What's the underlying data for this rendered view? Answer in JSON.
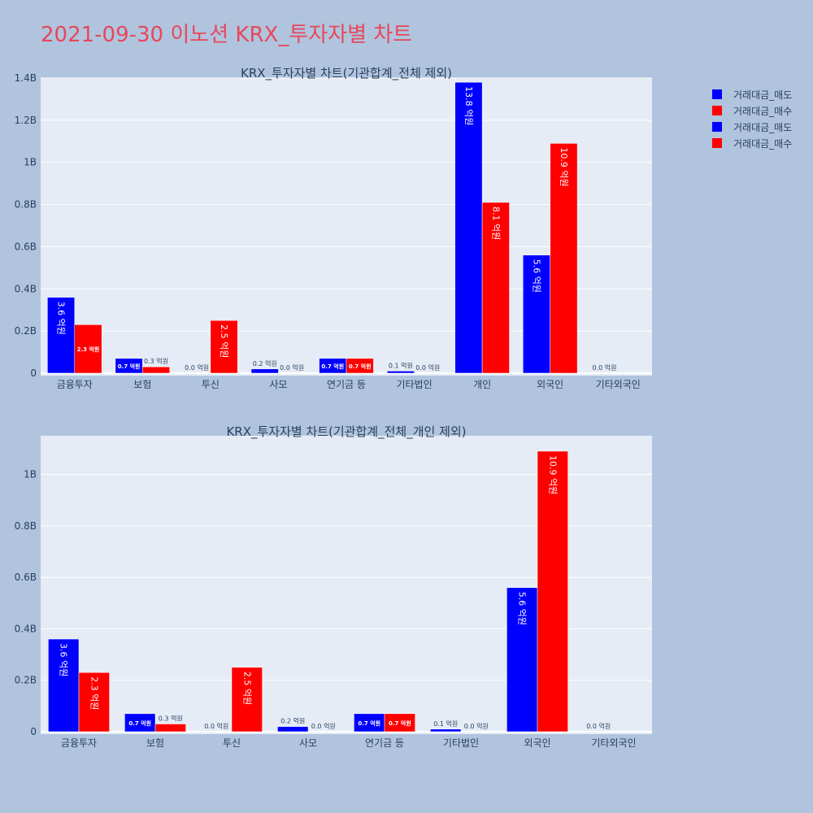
{
  "title": "2021-09-30 이노션 KRX_투자자별 차트",
  "colors": {
    "sell": "#0000ff",
    "buy": "#ff0000",
    "plot_bg": "#e5ecf6",
    "page_bg": "#b0c4de",
    "text": "#2a3f5f"
  },
  "legend": [
    {
      "name": "거래대금_매도",
      "color": "#0000ff"
    },
    {
      "name": "거래대금_매수",
      "color": "#ff0000"
    },
    {
      "name": "거래대금_매도",
      "color": "#0000ff"
    },
    {
      "name": "거래대금_매수",
      "color": "#ff0000"
    }
  ],
  "chart_data": [
    {
      "type": "bar",
      "title": "KRX_투자자별 차트(기관합계_전체 제외)",
      "categories": [
        "금융투자",
        "보험",
        "투신",
        "사모",
        "연기금 등",
        "기타법인",
        "개인",
        "외국인",
        "기타외국인"
      ],
      "ylim": [
        0,
        1400000000
      ],
      "yticks": [
        0,
        200000000,
        400000000,
        600000000,
        800000000,
        1000000000,
        1200000000,
        1400000000
      ],
      "ytick_labels": [
        "0",
        "0.2B",
        "0.4B",
        "0.6B",
        "0.8B",
        "1B",
        "1.2B",
        "1.4B"
      ],
      "grid": true,
      "series": [
        {
          "name": "거래대금_매도",
          "color": "#0000ff",
          "values": [
            360000000,
            70000000,
            0,
            20000000,
            70000000,
            10000000,
            1380000000,
            560000000,
            0
          ],
          "labels": [
            "3.6 억원",
            "0.7 억원",
            "0.0 억원",
            "0.2 억원",
            "0.7 억원",
            "0.1 억원",
            "13.8 억원",
            "5.6 억원",
            "0.0 억원"
          ]
        },
        {
          "name": "거래대금_매수",
          "color": "#ff0000",
          "values": [
            230000000,
            30000000,
            250000000,
            0,
            70000000,
            0,
            810000000,
            1090000000,
            null
          ],
          "labels": [
            "2.3 억원",
            "0.3 억원",
            "2.5 억원",
            "0.0 억원",
            "0.7 억원",
            "0.0 억원",
            "8.1 억원",
            "10.9 억원",
            ""
          ]
        }
      ]
    },
    {
      "type": "bar",
      "title": "KRX_투자자별 차트(기관합계_전체_개인 제외)",
      "categories": [
        "금융투자",
        "보험",
        "투신",
        "사모",
        "연기금 등",
        "기타법인",
        "외국인",
        "기타외국인"
      ],
      "ylim": [
        0,
        1150000000
      ],
      "yticks": [
        0,
        200000000,
        400000000,
        600000000,
        800000000,
        1000000000
      ],
      "ytick_labels": [
        "0",
        "0.2B",
        "0.4B",
        "0.6B",
        "0.8B",
        "1B"
      ],
      "grid": true,
      "series": [
        {
          "name": "거래대금_매도",
          "color": "#0000ff",
          "values": [
            360000000,
            70000000,
            0,
            20000000,
            70000000,
            10000000,
            560000000,
            0
          ],
          "labels": [
            "3.6 억원",
            "0.7 억원",
            "0.0 억원",
            "0.2 억원",
            "0.7 억원",
            "0.1 억원",
            "5.6 억원",
            "0.0 억원"
          ]
        },
        {
          "name": "거래대금_매수",
          "color": "#ff0000",
          "values": [
            230000000,
            30000000,
            250000000,
            0,
            70000000,
            0,
            1090000000,
            null
          ],
          "labels": [
            "2.3 억원",
            "0.3 억원",
            "2.5 억원",
            "0.0 억원",
            "0.7 억원",
            "0.0 억원",
            "10.9 억원",
            ""
          ]
        }
      ]
    }
  ]
}
